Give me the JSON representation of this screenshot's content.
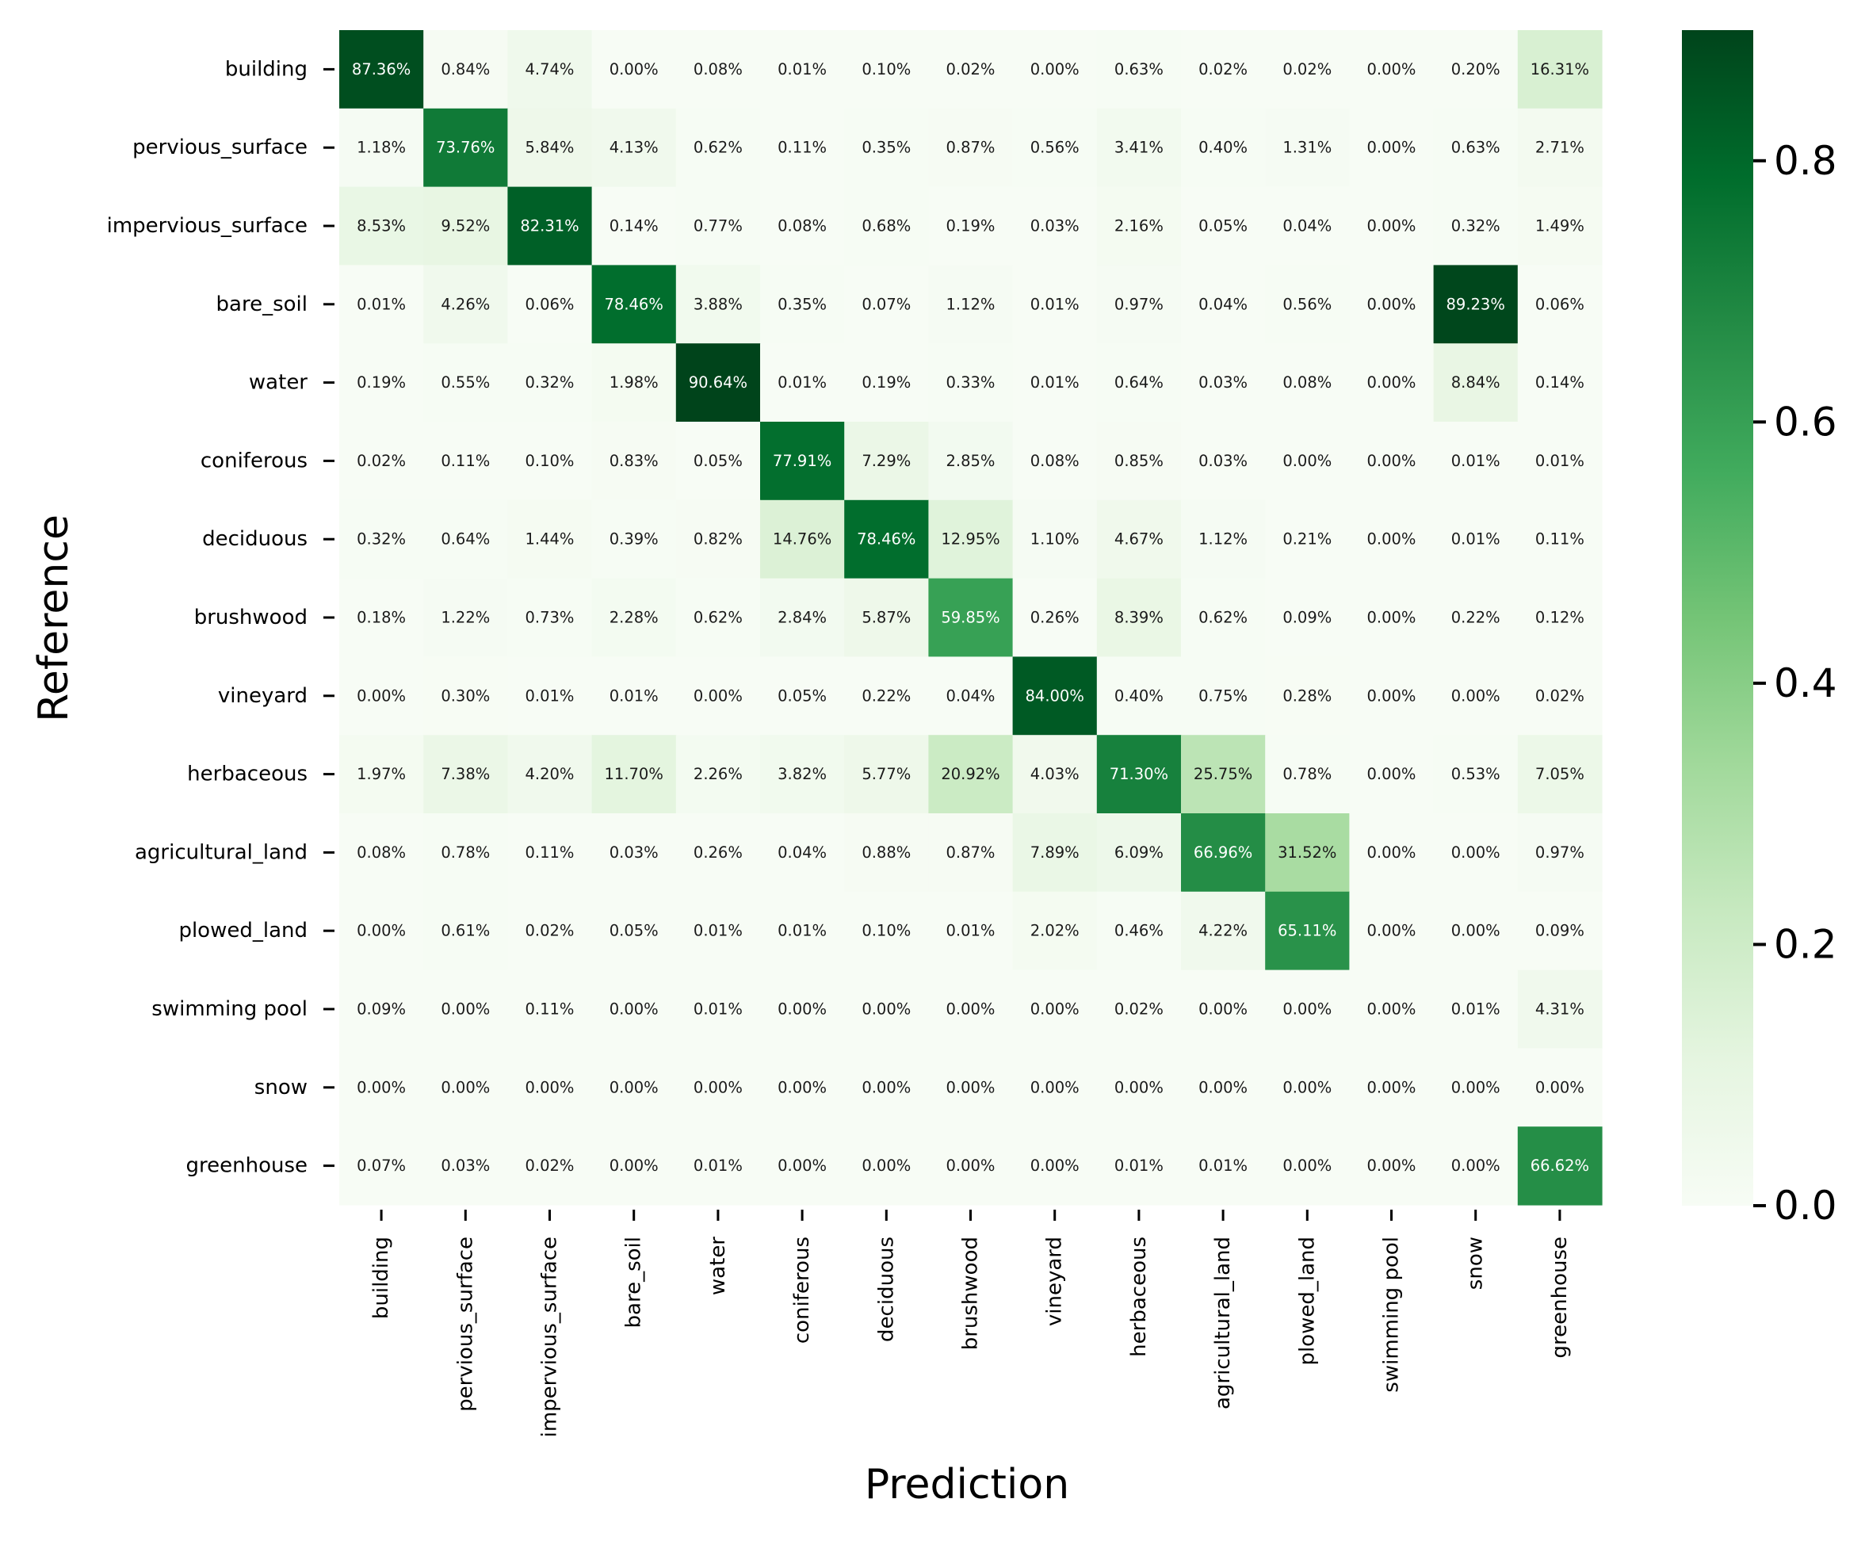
{
  "chart_data": {
    "type": "heatmap",
    "xlabel": "Prediction",
    "ylabel": "Reference",
    "categories": [
      "building",
      "pervious_surface",
      "impervious_surface",
      "bare_soil",
      "water",
      "coniferous",
      "deciduous",
      "brushwood",
      "vineyard",
      "herbaceous",
      "agricultural_land",
      "plowed_land",
      "swimming pool",
      "snow",
      "greenhouse"
    ],
    "values": [
      [
        87.36,
        0.84,
        4.74,
        0.0,
        0.08,
        0.01,
        0.1,
        0.02,
        0.0,
        0.63,
        0.02,
        0.02,
        0.0,
        0.2,
        16.31
      ],
      [
        1.18,
        73.76,
        5.84,
        4.13,
        0.62,
        0.11,
        0.35,
        0.87,
        0.56,
        3.41,
        0.4,
        1.31,
        0.0,
        0.63,
        2.71
      ],
      [
        8.53,
        9.52,
        82.31,
        0.14,
        0.77,
        0.08,
        0.68,
        0.19,
        0.03,
        2.16,
        0.05,
        0.04,
        0.0,
        0.32,
        1.49
      ],
      [
        0.01,
        4.26,
        0.06,
        78.46,
        3.88,
        0.35,
        0.07,
        1.12,
        0.01,
        0.97,
        0.04,
        0.56,
        0.0,
        89.23,
        0.06
      ],
      [
        0.19,
        0.55,
        0.32,
        1.98,
        90.64,
        0.01,
        0.19,
        0.33,
        0.01,
        0.64,
        0.03,
        0.08,
        0.0,
        8.84,
        0.14
      ],
      [
        0.02,
        0.11,
        0.1,
        0.83,
        0.05,
        77.91,
        7.29,
        2.85,
        0.08,
        0.85,
        0.03,
        0.0,
        0.0,
        0.01,
        0.01
      ],
      [
        0.32,
        0.64,
        1.44,
        0.39,
        0.82,
        14.76,
        78.46,
        12.95,
        1.1,
        4.67,
        1.12,
        0.21,
        0.0,
        0.01,
        0.11
      ],
      [
        0.18,
        1.22,
        0.73,
        2.28,
        0.62,
        2.84,
        5.87,
        59.85,
        0.26,
        8.39,
        0.62,
        0.09,
        0.0,
        0.22,
        0.12
      ],
      [
        0.0,
        0.3,
        0.01,
        0.01,
        0.0,
        0.05,
        0.22,
        0.04,
        84.0,
        0.4,
        0.75,
        0.28,
        0.0,
        0.0,
        0.02
      ],
      [
        1.97,
        7.38,
        4.2,
        11.7,
        2.26,
        3.82,
        5.77,
        20.92,
        4.03,
        71.3,
        25.75,
        0.78,
        0.0,
        0.53,
        7.05
      ],
      [
        0.08,
        0.78,
        0.11,
        0.03,
        0.26,
        0.04,
        0.88,
        0.87,
        7.89,
        6.09,
        66.96,
        31.52,
        0.0,
        0.0,
        0.97
      ],
      [
        0.0,
        0.61,
        0.02,
        0.05,
        0.01,
        0.01,
        0.1,
        0.01,
        2.02,
        0.46,
        4.22,
        65.11,
        0.0,
        0.0,
        0.09
      ],
      [
        0.09,
        0.0,
        0.11,
        0.0,
        0.01,
        0.0,
        0.0,
        0.0,
        0.0,
        0.02,
        0.0,
        0.0,
        0.0,
        0.01,
        4.31
      ],
      [
        0.0,
        0.0,
        0.0,
        0.0,
        0.0,
        0.0,
        0.0,
        0.0,
        0.0,
        0.0,
        0.0,
        0.0,
        0.0,
        0.0,
        0.0
      ],
      [
        0.07,
        0.03,
        0.02,
        0.0,
        0.01,
        0.0,
        0.0,
        0.0,
        0.0,
        0.01,
        0.01,
        0.0,
        0.0,
        0.0,
        66.62
      ]
    ],
    "value_format": "percent, 2 decimals",
    "colormap": "Greens",
    "colors": [
      "#f7fcf5",
      "#e5f5e0",
      "#c7e9c0",
      "#a1d99b",
      "#74c476",
      "#41ab5d",
      "#238b45",
      "#006d2c",
      "#00441b"
    ],
    "colorbar": {
      "range": [
        0.0,
        0.9
      ],
      "ticks": [
        0.0,
        0.2,
        0.4,
        0.6,
        0.8
      ],
      "tick_labels": [
        "0.0",
        "0.2",
        "0.4",
        "0.6",
        "0.8"
      ]
    }
  }
}
